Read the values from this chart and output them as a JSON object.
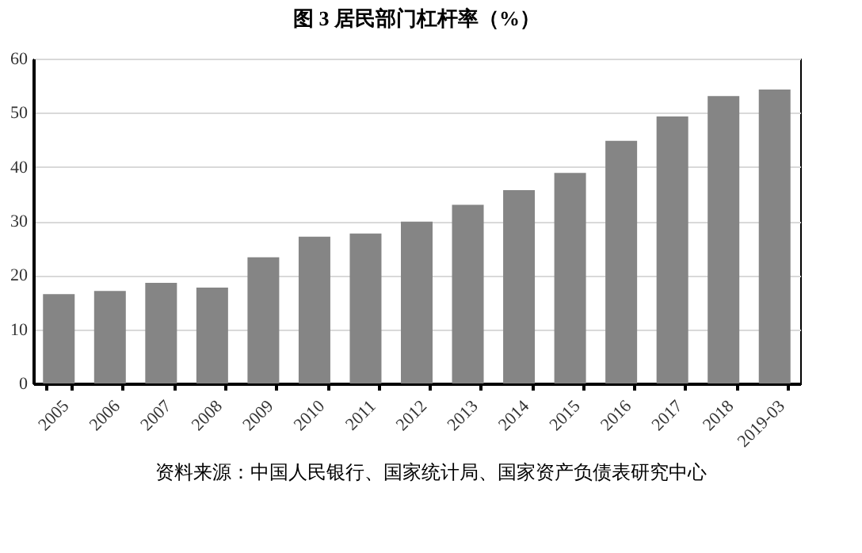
{
  "chart_data": {
    "type": "bar",
    "title": "图 3 居民部门杠杆率（%）",
    "categories": [
      "2005",
      "2006",
      "2007",
      "2008",
      "2009",
      "2010",
      "2011",
      "2012",
      "2013",
      "2014",
      "2015",
      "2016",
      "2017",
      "2018",
      "2019-03"
    ],
    "values": [
      16.5,
      17.1,
      18.6,
      17.7,
      23.3,
      27.1,
      27.7,
      29.9,
      33.0,
      35.7,
      38.9,
      44.8,
      49.3,
      53.1,
      54.3
    ],
    "color": "#858585",
    "ylim": [
      0,
      60
    ],
    "yticks": [
      0,
      10,
      20,
      30,
      40,
      50,
      60
    ],
    "grid": "y",
    "annotations": [
      "资料来源：中国人民银行、国家统计局、国家资产负债表研究中心"
    ]
  }
}
